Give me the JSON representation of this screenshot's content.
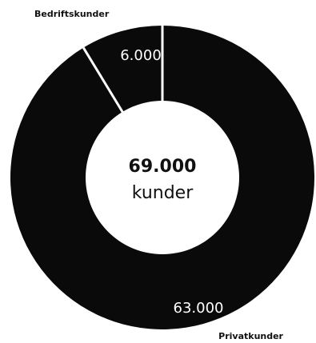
{
  "chart_data": {
    "type": "pie",
    "donut": true,
    "categories": [
      "Bedriftskunder",
      "Privatkunder"
    ],
    "values": [
      6000,
      63000
    ],
    "value_labels": [
      "6.000",
      "63.000"
    ],
    "center": {
      "value": "69.000",
      "unit": "kunder"
    },
    "colors": [
      "#0a0a0a",
      "#0a0a0a"
    ],
    "separator_color": "#ffffff",
    "legend": "none"
  }
}
